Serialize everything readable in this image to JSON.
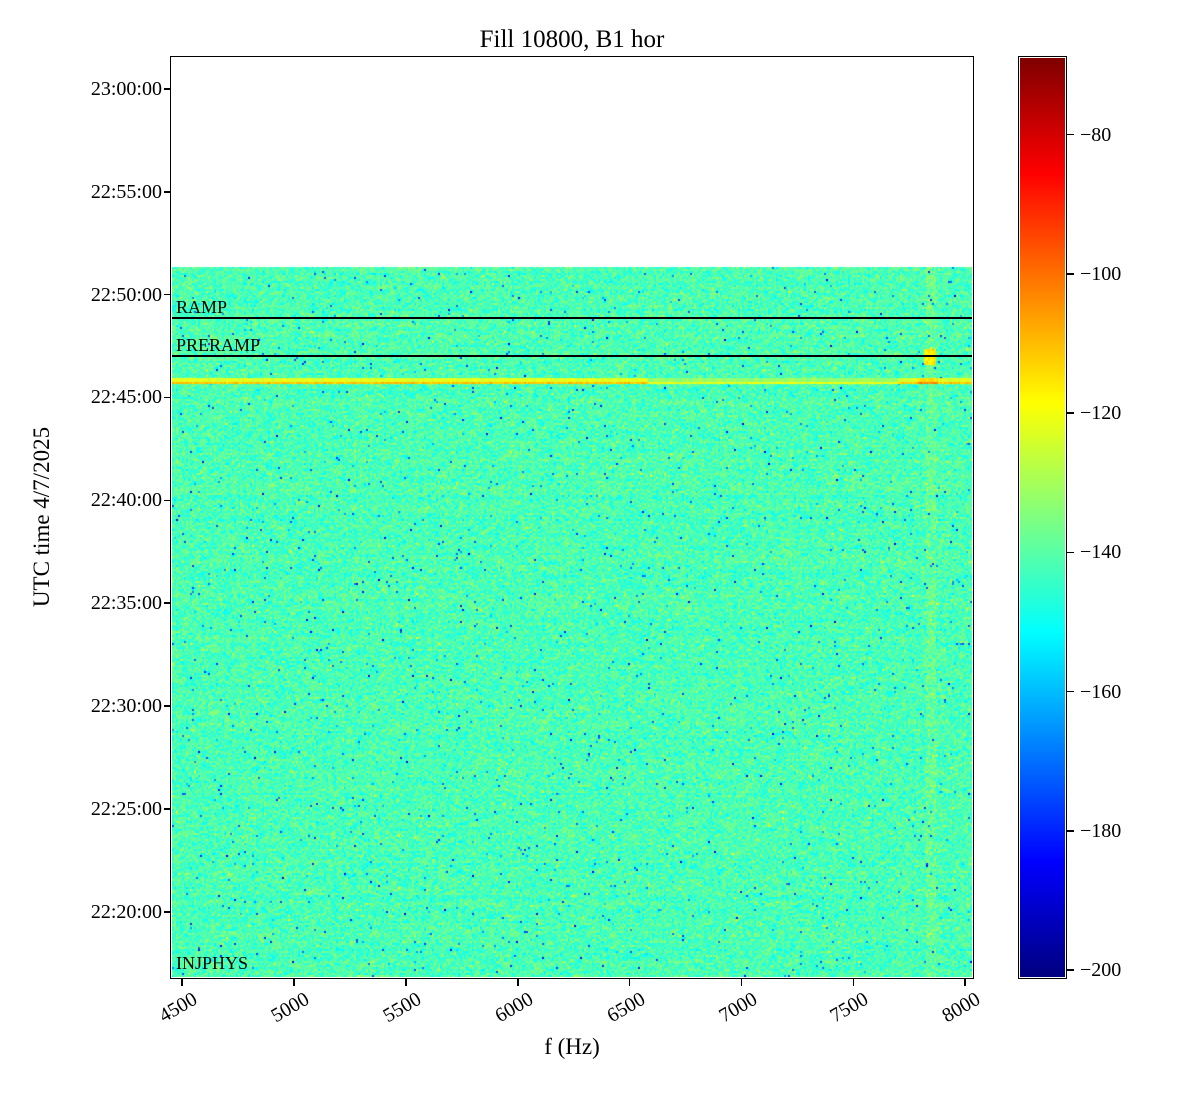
{
  "title": "Fill 10800, B1 hor",
  "xlabel": "f (Hz)",
  "ylabel": "UTC time 4/7/2025",
  "chart_data": {
    "type": "heatmap",
    "subtype": "spectrogram",
    "title": "Fill 10800, B1 hor",
    "xlabel": "f (Hz)",
    "ylabel": "UTC time 4/7/2025",
    "x_unit": "Hz",
    "x_range": [
      4455,
      8030
    ],
    "x_ticks": [
      4500,
      5000,
      5500,
      6000,
      6500,
      7000,
      7500,
      8000
    ],
    "y_date": "4/7/2025",
    "y_range": [
      "22:16:50",
      "23:01:30"
    ],
    "y_ticks": [
      "23:00:00",
      "22:55:00",
      "22:50:00",
      "22:45:00",
      "22:40:00",
      "22:35:00",
      "22:30:00",
      "22:25:00",
      "22:20:00"
    ],
    "data_start_time": "22:16:50",
    "data_end_time": "22:51:20",
    "noise_mean_db": -142,
    "noise_std_db": 4.6,
    "colorbar": {
      "colormap": "jet",
      "min": -201,
      "max": -69,
      "ticks": [
        -80,
        -100,
        -120,
        -140,
        -160,
        -180,
        -200
      ]
    },
    "annotations": [
      {
        "label": "RAMP",
        "time": "22:48:52",
        "line": true
      },
      {
        "label": "PRERAMP",
        "time": "22:47:00",
        "line": true
      },
      {
        "label": "INJPHYS",
        "time": "22:17:00",
        "line": false
      }
    ],
    "features": [
      {
        "type": "bright-row",
        "time": "22:45:50",
        "segments": [
          {
            "f_start": 4455,
            "f_end": 6580,
            "db": -122
          },
          {
            "f_start": 6580,
            "f_end": 7700,
            "db": -132
          },
          {
            "f_start": 7700,
            "f_end": 8030,
            "db": -123
          },
          {
            "f_start": 7790,
            "f_end": 7880,
            "db": -114
          }
        ]
      },
      {
        "type": "bright-spot",
        "time": "22:47:00",
        "f_start": 7815,
        "f_end": 7865,
        "db": -116,
        "height_s": 40
      },
      {
        "type": "vertical-stripe",
        "f_start": 7820,
        "f_end": 7870,
        "db_offset": 4
      }
    ]
  }
}
